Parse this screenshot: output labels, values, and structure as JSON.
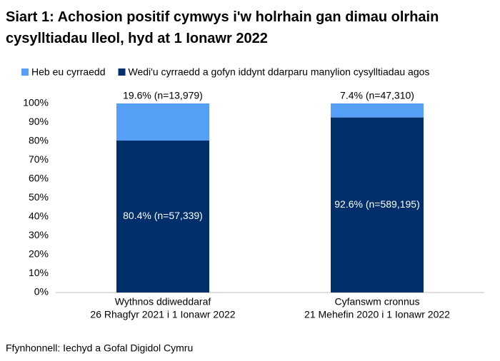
{
  "chart_data": {
    "type": "stacked_bar",
    "title": "Siart 1: Achosion positif cymwys i'w holrhain gan dimau olrhain cysylltiadau lleol, hyd at 1 Ionawr 2022",
    "categories": [
      [
        "Wythnos ddiweddaraf",
        "26 Rhagfyr 2021 i 1 Ionawr 2022"
      ],
      [
        "Cyfanswm cronnus",
        "21 Mehefin 2020 i 1 Ionawr 2022"
      ]
    ],
    "series": [
      {
        "name": "Wedi'u cyrraedd a gofyn iddynt ddarparu manylion cysylltiadau agos",
        "color": "#002f6c",
        "values": [
          80.4,
          92.6
        ],
        "value_labels": [
          "80.4% (n=57,339)",
          "92.6% (n=589,195)"
        ]
      },
      {
        "name": "Heb eu cyrraedd",
        "color": "#559ff7",
        "values": [
          19.6,
          7.4
        ],
        "value_labels": [
          "19.6% (n=13,979)",
          "7.4% (n=47,310)"
        ]
      }
    ],
    "ylim": [
      0,
      100
    ],
    "yticks": [
      {
        "value": 0,
        "label": "0%"
      },
      {
        "value": 10,
        "label": "10%"
      },
      {
        "value": 20,
        "label": "20%"
      },
      {
        "value": 30,
        "label": "30%"
      },
      {
        "value": 40,
        "label": "40%"
      },
      {
        "value": 50,
        "label": "50%"
      },
      {
        "value": 60,
        "label": "60%"
      },
      {
        "value": 70,
        "label": "70%"
      },
      {
        "value": 80,
        "label": "80%"
      },
      {
        "value": 90,
        "label": "90%"
      },
      {
        "value": 100,
        "label": "100%"
      }
    ],
    "source": "Ffynhonnell: Iechyd a Gofal Digidol Cymru"
  }
}
